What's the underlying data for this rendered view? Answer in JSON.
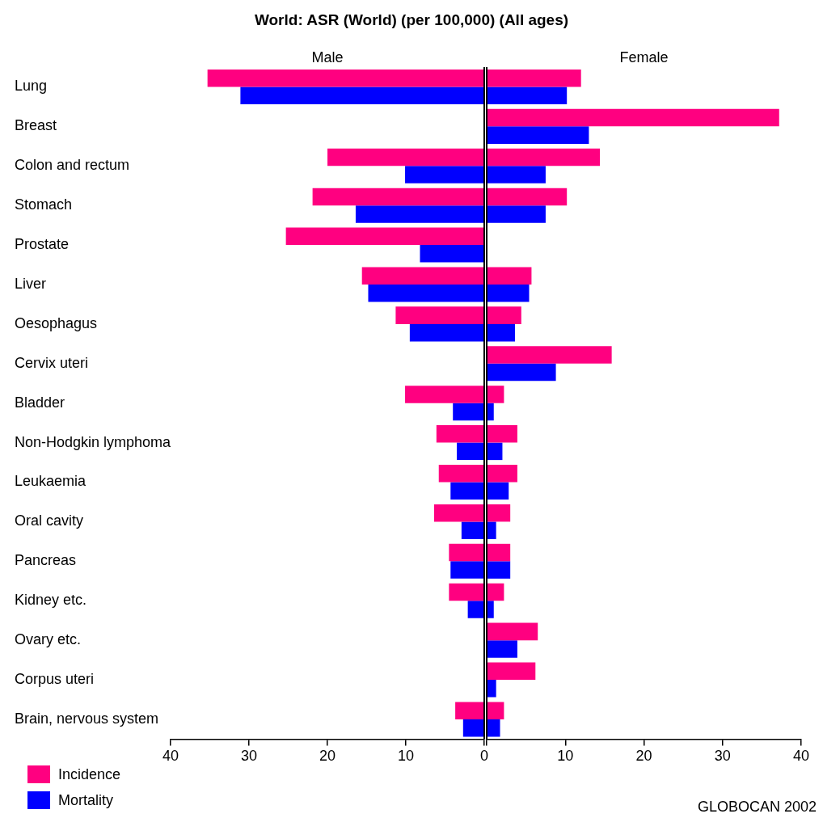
{
  "chart_data": [
    {
      "type": "bar",
      "orientation": "horizontal",
      "title": "World: ASR (World) (per 100,000) (All ages)",
      "subtitle": "Male",
      "categories": [
        "Lung",
        "Breast",
        "Colon and rectum",
        "Stomach",
        "Prostate",
        "Liver",
        "Oesophagus",
        "Cervix uteri",
        "Bladder",
        "Non-Hodgkin lymphoma",
        "Leukaemia",
        "Oral cavity",
        "Pancreas",
        "Kidney etc.",
        "Ovary etc.",
        "Corpus uteri",
        "Brain, nervous system"
      ],
      "series": [
        {
          "name": "Incidence",
          "color": "#ff0080",
          "values": [
            35.3,
            null,
            20.0,
            21.9,
            25.3,
            15.6,
            11.3,
            null,
            10.1,
            6.1,
            5.8,
            6.4,
            4.5,
            4.5,
            null,
            null,
            3.7
          ]
        },
        {
          "name": "Mortality",
          "color": "#0000ff",
          "values": [
            31.1,
            null,
            10.1,
            16.4,
            8.2,
            14.8,
            9.5,
            null,
            4.0,
            3.5,
            4.3,
            2.9,
            4.3,
            2.1,
            null,
            null,
            2.7
          ]
        }
      ],
      "xlim": [
        40,
        0
      ],
      "xticks": [
        40,
        30,
        20,
        10,
        0
      ],
      "legend": "bottom left"
    },
    {
      "type": "bar",
      "orientation": "horizontal",
      "subtitle": "Female",
      "categories": [
        null,
        null,
        null,
        null,
        null,
        null,
        null,
        null,
        null,
        null,
        null,
        null,
        null,
        null,
        null,
        null,
        null
      ],
      "series": [
        {
          "color": "#ff0080",
          "values": [
            12.0,
            37.2,
            14.4,
            10.2,
            null,
            5.7,
            4.4,
            15.9,
            2.2,
            3.9,
            3.9,
            3.0,
            3.0,
            2.2,
            6.5,
            6.2,
            2.2
          ]
        },
        {
          "color": "#0000ff",
          "values": [
            10.2,
            13.0,
            7.5,
            7.5,
            null,
            5.4,
            3.6,
            8.8,
            0.9,
            2.0,
            2.8,
            1.2,
            3.0,
            0.9,
            3.9,
            1.2,
            1.7
          ]
        }
      ],
      "xlim": [
        0,
        40
      ],
      "xticks": [
        {
          "value": 0,
          "label": null
        },
        10,
        20,
        30,
        40
      ],
      "tick_labels": "x",
      "annotations": [
        "GLOBOCAN 2002"
      ]
    }
  ]
}
